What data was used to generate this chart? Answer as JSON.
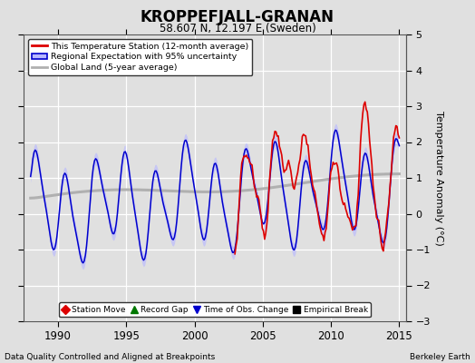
{
  "title": "KROPPEFJALL-GRANAN",
  "subtitle": "58.607 N, 12.197 E (Sweden)",
  "xlabel_bottom": "Data Quality Controlled and Aligned at Breakpoints",
  "xlabel_right": "Berkeley Earth",
  "ylabel": "Temperature Anomaly (°C)",
  "xlim": [
    1987.5,
    2015.5
  ],
  "ylim": [
    -3,
    5
  ],
  "yticks": [
    -3,
    -2,
    -1,
    0,
    1,
    2,
    3,
    4,
    5
  ],
  "xticks": [
    1990,
    1995,
    2000,
    2005,
    2010,
    2015
  ],
  "background_color": "#e0e0e0",
  "plot_bg_color": "#e0e0e0",
  "grid_color": "#ffffff",
  "station_color": "#dd0000",
  "regional_color": "#0000cc",
  "regional_fill_color": "#b8b8ff",
  "global_color": "#b0b0b0",
  "legend_items": [
    "This Temperature Station (12-month average)",
    "Regional Expectation with 95% uncertainty",
    "Global Land (5-year average)"
  ],
  "bottom_legend": [
    {
      "marker": "D",
      "color": "#dd0000",
      "label": "Station Move"
    },
    {
      "marker": "^",
      "color": "#007700",
      "label": "Record Gap"
    },
    {
      "marker": "v",
      "color": "#0000cc",
      "label": "Time of Obs. Change"
    },
    {
      "marker": "s",
      "color": "#000000",
      "label": "Empirical Break"
    }
  ]
}
